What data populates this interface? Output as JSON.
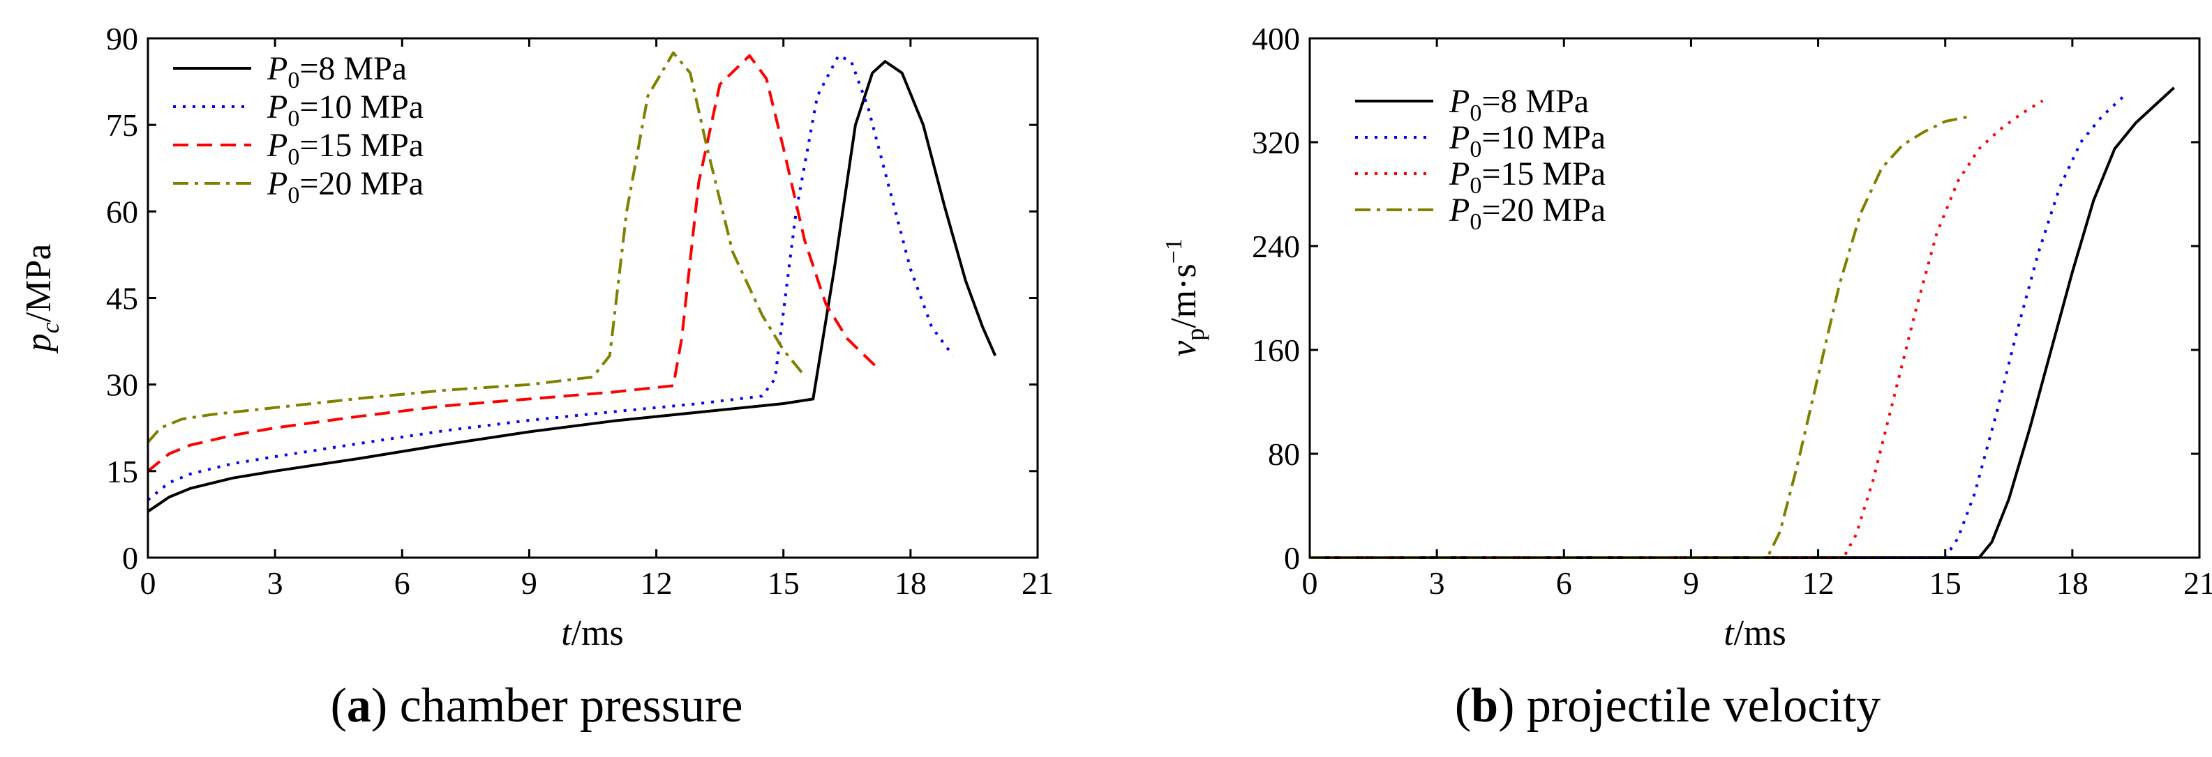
{
  "captions": [
    {
      "letter": "a",
      "rest": " chamber pressure"
    },
    {
      "letter": "b",
      "rest": " projectile velocity"
    }
  ],
  "chart_data": [
    {
      "type": "line",
      "title": "chamber pressure",
      "xlabel": {
        "main": "t",
        "unit": "/ms"
      },
      "ylabel": {
        "main": "p",
        "sub": "c",
        "unit": "/MPa"
      },
      "xlim": [
        0,
        21
      ],
      "ylim": [
        0,
        90
      ],
      "xticks": [
        0,
        3,
        6,
        9,
        12,
        15,
        18,
        21
      ],
      "yticks": [
        0,
        15,
        30,
        45,
        60,
        75,
        90
      ],
      "legend_position": "top-left",
      "series": [
        {
          "name": "P0=8 MPa",
          "label_main": "P",
          "label_sub": "0",
          "label_rest": "=8 MPa",
          "color": "#000000",
          "dash": "solid",
          "x": [
            0,
            0.5,
            1,
            2,
            3,
            5,
            7,
            9,
            11,
            13,
            15,
            15.7,
            16.2,
            16.7,
            17.1,
            17.4,
            17.8,
            18.3,
            18.8,
            19.3,
            19.7,
            20
          ],
          "y": [
            8,
            10.5,
            12,
            13.8,
            15,
            17.2,
            19.6,
            21.8,
            23.7,
            25.2,
            26.7,
            27.5,
            50,
            75,
            84,
            86,
            84,
            75,
            61,
            48,
            40,
            35
          ]
        },
        {
          "name": "P0=10 MPa",
          "label_main": "P",
          "label_sub": "0",
          "label_rest": "=10 MPa",
          "color": "#0000ff",
          "dash": "dotted",
          "x": [
            0,
            0.5,
            1,
            2,
            3,
            5,
            7,
            9,
            11,
            13,
            14.5,
            14.8,
            15.3,
            15.8,
            16.3,
            16.6,
            17,
            17.5,
            18,
            18.5,
            19
          ],
          "y": [
            10,
            13,
            14.5,
            16.3,
            17.5,
            19.8,
            22,
            23.8,
            25.3,
            26.7,
            28,
            31,
            60,
            80,
            87,
            86,
            78,
            64,
            50,
            40,
            35
          ]
        },
        {
          "name": "P0=15 MPa",
          "label_main": "P",
          "label_sub": "0",
          "label_rest": "=15 MPa",
          "color": "#ff0000",
          "dash": "dashed",
          "x": [
            0,
            0.5,
            1,
            2,
            3,
            5,
            7,
            9,
            11,
            12.4,
            12.6,
            13,
            13.5,
            14.2,
            14.6,
            15,
            15.5,
            16,
            16.5,
            17.2
          ],
          "y": [
            15,
            18,
            19.5,
            21.2,
            22.5,
            24.5,
            26.3,
            27.5,
            28.7,
            29.8,
            38,
            65,
            82,
            87,
            83,
            71,
            55,
            44,
            38,
            33
          ]
        },
        {
          "name": "P0=20 MPa",
          "label_main": "P",
          "label_sub": "0",
          "label_rest": "=20 MPa",
          "color": "#808000",
          "dash": "dashdot",
          "x": [
            0,
            0.3,
            0.8,
            1.5,
            3,
            5,
            7,
            9,
            10.5,
            10.9,
            11.3,
            11.8,
            12.4,
            12.8,
            13.2,
            13.8,
            14.5,
            15,
            15.5
          ],
          "y": [
            20,
            22.5,
            24,
            24.8,
            26,
            27.6,
            29,
            30,
            31.3,
            35,
            60,
            80,
            87.5,
            84,
            71,
            53,
            42,
            36,
            31.5
          ]
        }
      ]
    },
    {
      "type": "line",
      "title": "projectile velocity",
      "xlabel": {
        "main": "t",
        "unit": "/ms"
      },
      "ylabel": {
        "main": "v",
        "sub": "p",
        "unit": "/m·s",
        "sup": "−1"
      },
      "xlim": [
        0,
        21
      ],
      "ylim": [
        0,
        400
      ],
      "xticks": [
        0,
        3,
        6,
        9,
        12,
        15,
        18,
        21
      ],
      "yticks": [
        0,
        80,
        160,
        240,
        320,
        400
      ],
      "legend_position": "top-left",
      "series": [
        {
          "name": "P0=8 MPa",
          "label_main": "P",
          "label_sub": "0",
          "label_rest": "=8 MPa",
          "color": "#000000",
          "dash": "solid",
          "x": [
            0,
            15.8,
            16.1,
            16.5,
            17,
            17.5,
            18,
            18.5,
            19,
            19.5,
            20,
            20.4
          ],
          "y": [
            0,
            0,
            12,
            45,
            100,
            160,
            220,
            275,
            315,
            335,
            350,
            362
          ]
        },
        {
          "name": "P0=10 MPa",
          "label_main": "P",
          "label_sub": "0",
          "label_rest": "=10 MPa",
          "color": "#0000ff",
          "dash": "dotted",
          "x": [
            0,
            15,
            15.3,
            15.7,
            16.2,
            16.7,
            17.2,
            17.7,
            18.2,
            18.7,
            19.2
          ],
          "y": [
            0,
            0,
            15,
            50,
            110,
            175,
            235,
            285,
            320,
            340,
            355
          ]
        },
        {
          "name": "P0=15 MPa",
          "label_main": "P",
          "label_sub": "0",
          "label_rest": "=15 MPa",
          "color": "#ff0000",
          "dash": "dotted",
          "x": [
            0,
            12.6,
            12.9,
            13.3,
            13.8,
            14.3,
            14.8,
            15.3,
            15.8,
            16.3,
            16.8,
            17.3
          ],
          "y": [
            0,
            0,
            18,
            60,
            125,
            190,
            250,
            290,
            315,
            330,
            342,
            352
          ]
        },
        {
          "name": "P0=20 MPa",
          "label_main": "P",
          "label_sub": "0",
          "label_rest": "=20 MPa",
          "color": "#808000",
          "dash": "dashdot",
          "x": [
            0,
            10.8,
            11.1,
            11.5,
            12,
            12.5,
            13,
            13.5,
            14,
            14.5,
            15,
            15.6
          ],
          "y": [
            0,
            0,
            20,
            70,
            140,
            210,
            265,
            300,
            318,
            328,
            336,
            340
          ]
        }
      ]
    }
  ]
}
